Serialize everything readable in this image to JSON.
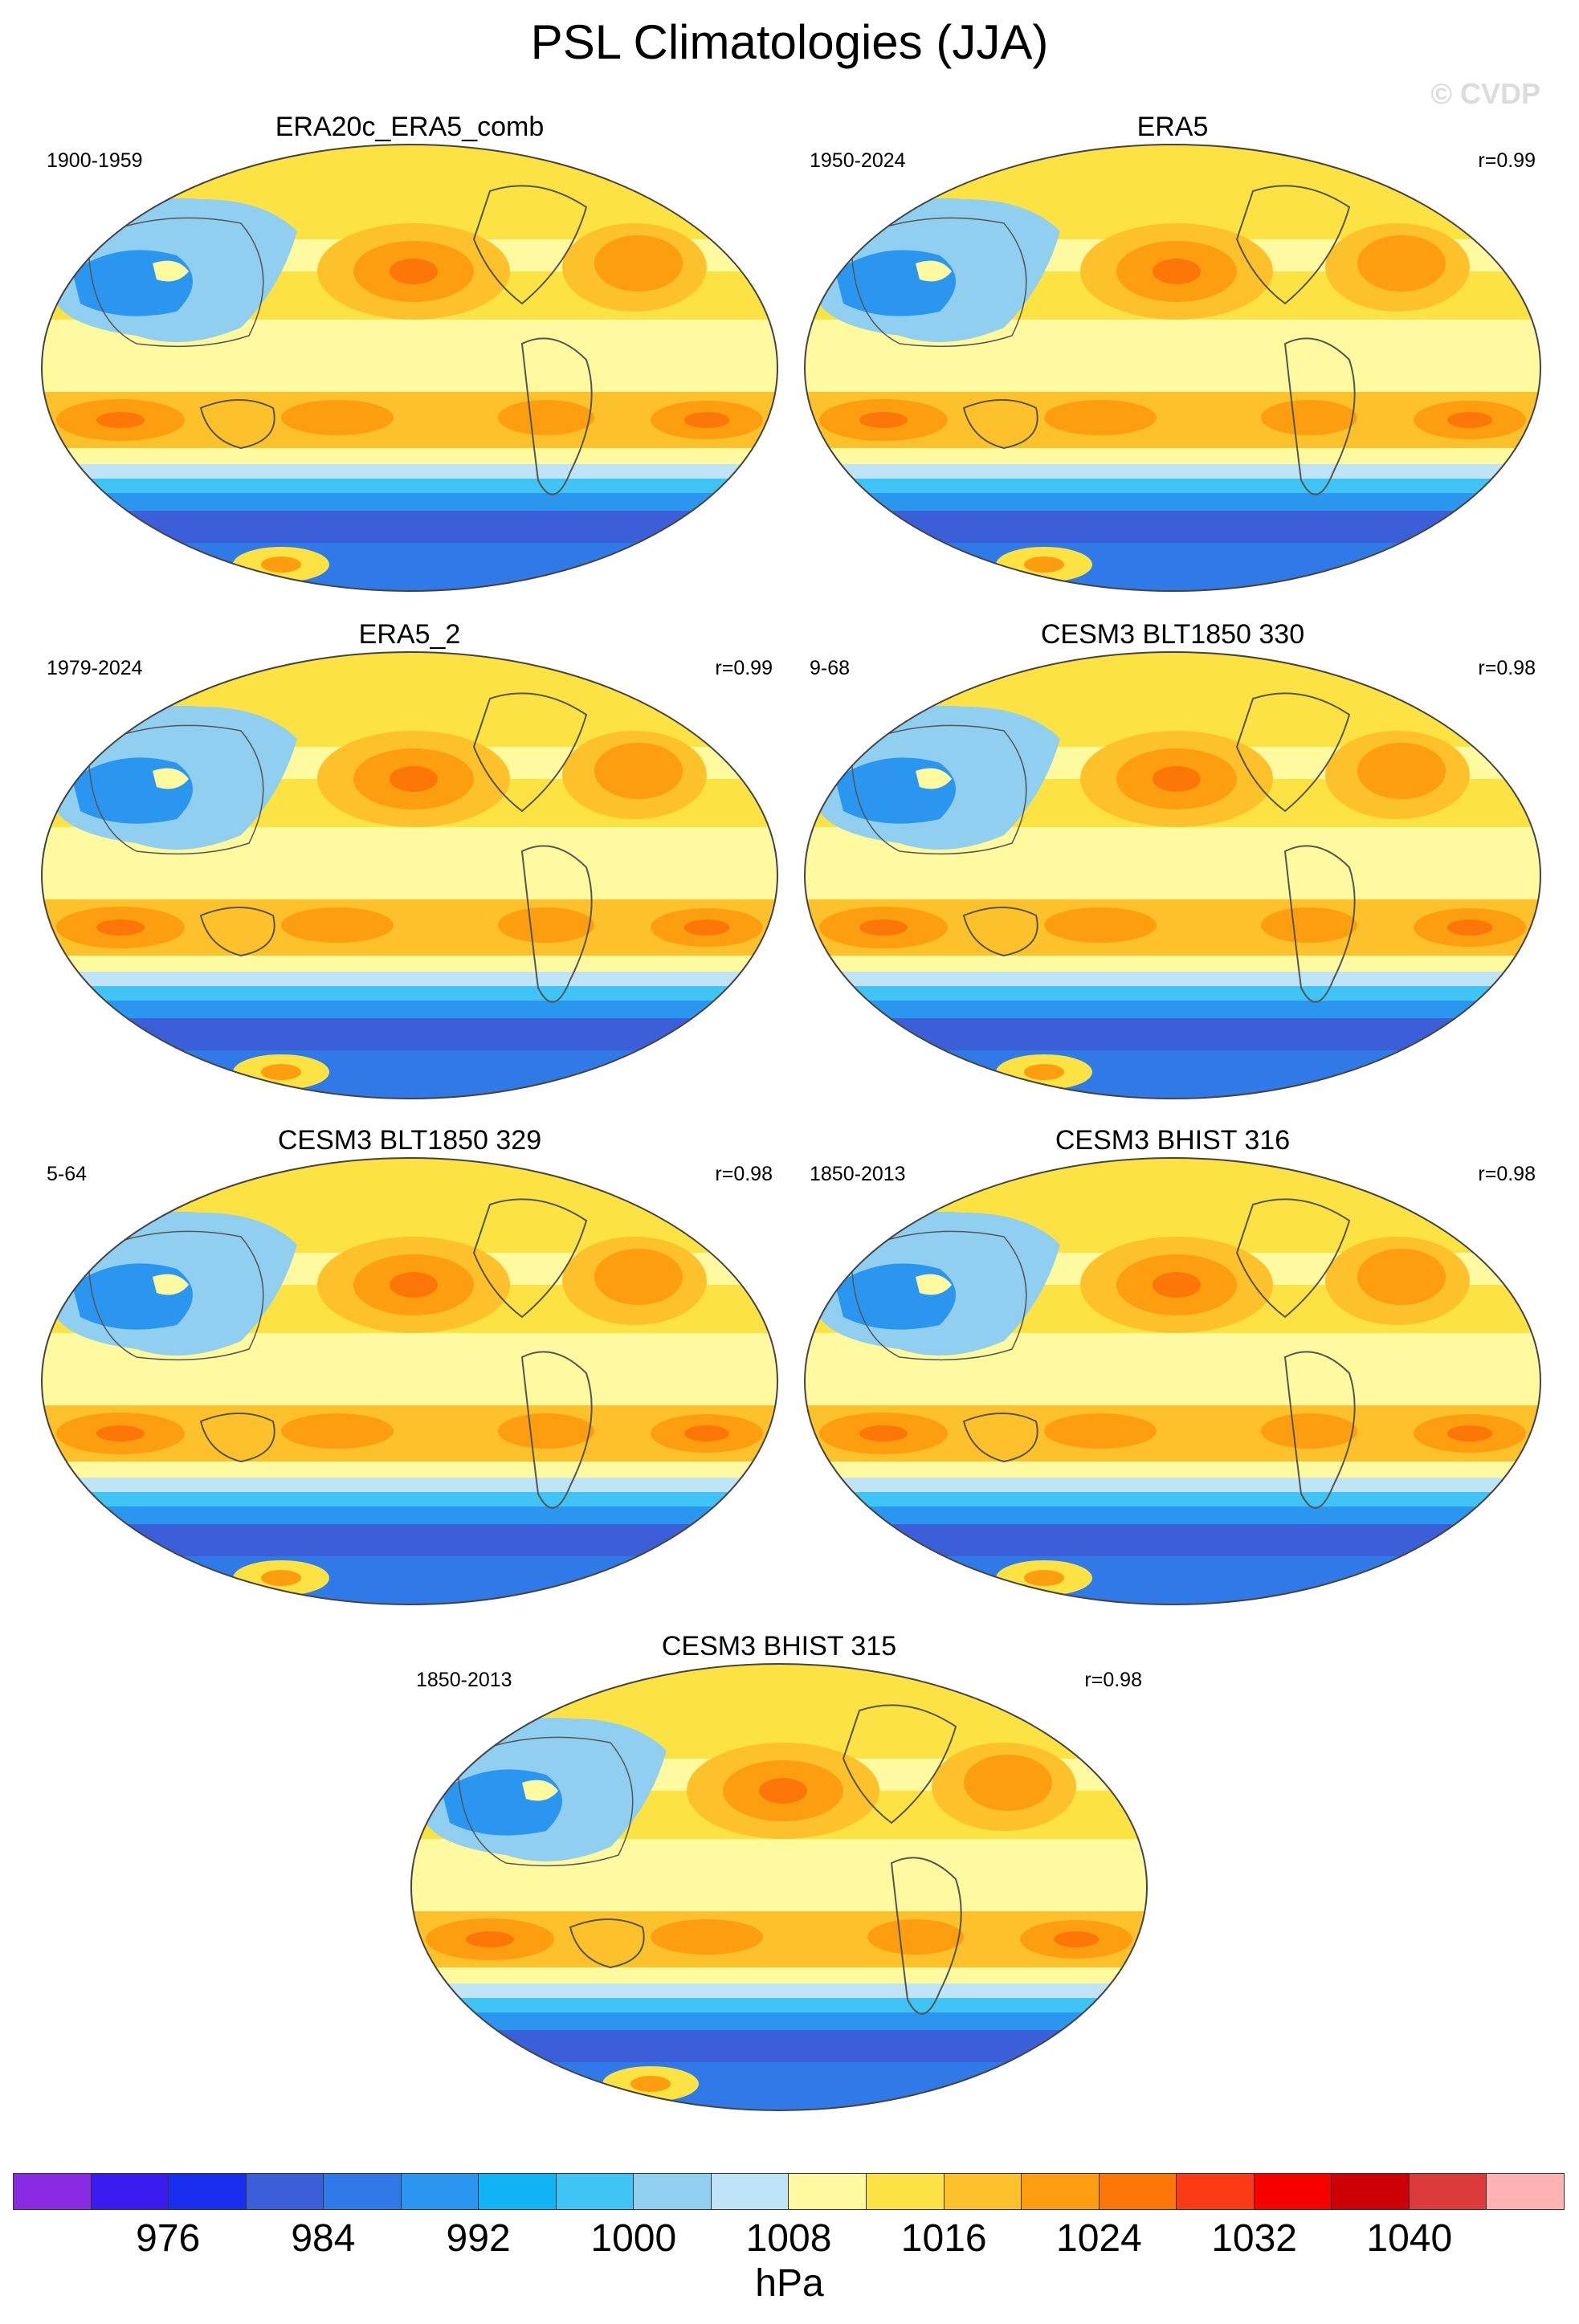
{
  "figure": {
    "title": "PSL Climatologies (JJA)",
    "watermark": "© CVDP"
  },
  "panels": [
    {
      "title": "ERA20c_ERA5_comb",
      "years": "1900-1959",
      "corr": ""
    },
    {
      "title": "ERA5",
      "years": "1950-2024",
      "corr": "r=0.99"
    },
    {
      "title": "ERA5_2",
      "years": "1979-2024",
      "corr": "r=0.99"
    },
    {
      "title": "CESM3 BLT1850 330",
      "years": "9-68",
      "corr": "r=0.98"
    },
    {
      "title": "CESM3 BLT1850 329",
      "years": "5-64",
      "corr": "r=0.98"
    },
    {
      "title": "CESM3 BHIST 316",
      "years": "1850-2013",
      "corr": "r=0.98"
    },
    {
      "title": "CESM3 BHIST 315",
      "years": "1850-2013",
      "corr": "r=0.98"
    }
  ],
  "colorbar": {
    "unit": "hPa",
    "labels": [
      "976",
      "984",
      "992",
      "1000",
      "1008",
      "1016",
      "1024",
      "1032",
      "1040"
    ],
    "colors": [
      "#8a2be2",
      "#3a1cf0",
      "#1a2ef0",
      "#3a5fd8",
      "#2f7ae8",
      "#2a96f0",
      "#10b4f5",
      "#40c4f5",
      "#90cff0",
      "#bfe4f7",
      "#fffaa0",
      "#fde244",
      "#fdc12b",
      "#fd9d10",
      "#fd7708",
      "#fd3a16",
      "#f80000",
      "#cc0006",
      "#dd3b3b",
      "#ffb3b3"
    ]
  }
}
